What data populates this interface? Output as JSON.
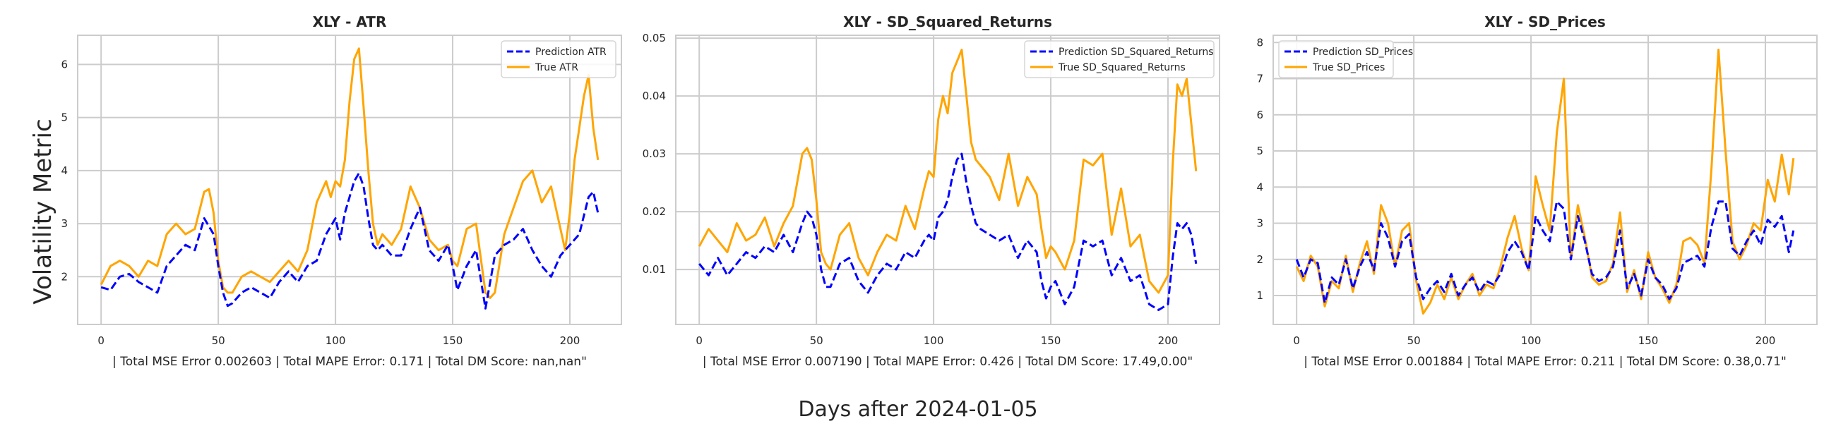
{
  "figure": {
    "ylabel": "Volatility Metric",
    "xlabel": "Days after 2024-01-05"
  },
  "colors": {
    "prediction": "#0000ff",
    "true": "#ffa500",
    "grid": "#cccccc",
    "frame": "#cccccc"
  },
  "chart_data": [
    {
      "type": "line",
      "title": "XLY - ATR",
      "footer": "| Total MSE Error 0.002603 | Total MAPE Error: 0.171 | Total DM Score: nan,nan\"",
      "xlim": [
        -10,
        222
      ],
      "ylim": [
        1.1,
        6.55
      ],
      "xticks": [
        0,
        50,
        100,
        150,
        200
      ],
      "yticks": [
        2,
        3,
        4,
        5,
        6
      ],
      "legend_position": "upper-right",
      "series": [
        {
          "name": "Prediction ATR",
          "style": "dashed",
          "color": "#0000ff",
          "x": [
            0,
            4,
            8,
            12,
            16,
            20,
            24,
            28,
            32,
            36,
            40,
            44,
            48,
            50,
            52,
            54,
            56,
            60,
            64,
            68,
            72,
            76,
            80,
            84,
            88,
            92,
            96,
            100,
            102,
            104,
            106,
            108,
            110,
            112,
            114,
            116,
            118,
            120,
            124,
            128,
            132,
            136,
            140,
            144,
            148,
            150,
            152,
            156,
            160,
            164,
            168,
            172,
            176,
            180,
            184,
            188,
            192,
            196,
            200,
            204,
            208,
            210,
            212
          ],
          "y": [
            1.8,
            1.75,
            2.0,
            2.05,
            1.9,
            1.8,
            1.7,
            2.2,
            2.4,
            2.6,
            2.5,
            3.1,
            2.8,
            2.2,
            1.7,
            1.45,
            1.5,
            1.7,
            1.8,
            1.7,
            1.6,
            1.9,
            2.1,
            1.9,
            2.2,
            2.3,
            2.8,
            3.1,
            2.7,
            3.2,
            3.5,
            3.8,
            3.95,
            3.7,
            3.1,
            2.6,
            2.5,
            2.6,
            2.4,
            2.4,
            2.9,
            3.3,
            2.5,
            2.3,
            2.6,
            2.2,
            1.75,
            2.2,
            2.5,
            1.4,
            2.4,
            2.6,
            2.7,
            2.9,
            2.5,
            2.2,
            2.0,
            2.4,
            2.6,
            2.8,
            3.5,
            3.6,
            3.2
          ]
        },
        {
          "name": "True ATR",
          "style": "solid",
          "color": "#ffa500",
          "x": [
            0,
            4,
            8,
            12,
            16,
            20,
            24,
            28,
            32,
            36,
            40,
            44,
            46,
            48,
            50,
            52,
            54,
            56,
            60,
            64,
            68,
            72,
            76,
            80,
            84,
            88,
            92,
            96,
            98,
            100,
            102,
            104,
            106,
            108,
            110,
            112,
            114,
            116,
            118,
            120,
            124,
            128,
            132,
            136,
            140,
            144,
            148,
            150,
            152,
            156,
            160,
            164,
            166,
            168,
            172,
            176,
            180,
            184,
            188,
            192,
            196,
            198,
            200,
            202,
            204,
            206,
            208,
            210,
            212
          ],
          "y": [
            1.85,
            2.2,
            2.3,
            2.2,
            2.0,
            2.3,
            2.2,
            2.8,
            3.0,
            2.8,
            2.9,
            3.6,
            3.65,
            3.2,
            2.3,
            1.8,
            1.7,
            1.7,
            2.0,
            2.1,
            2.0,
            1.9,
            2.1,
            2.3,
            2.1,
            2.5,
            3.4,
            3.8,
            3.5,
            3.8,
            3.7,
            4.2,
            5.3,
            6.1,
            6.3,
            5.2,
            4.0,
            3.0,
            2.6,
            2.8,
            2.6,
            2.9,
            3.7,
            3.3,
            2.7,
            2.5,
            2.6,
            2.3,
            2.2,
            2.9,
            3.0,
            1.7,
            1.6,
            1.7,
            2.8,
            3.3,
            3.8,
            4.0,
            3.4,
            3.7,
            2.9,
            2.5,
            3.2,
            4.2,
            4.8,
            5.4,
            5.8,
            4.8,
            4.2
          ]
        }
      ]
    },
    {
      "type": "line",
      "title": "XLY - SD_Squared_Returns",
      "footer": "| Total MSE Error 0.007190 | Total MAPE Error: 0.426 | Total DM Score: 17.49,0.00\"",
      "xlim": [
        -10,
        222
      ],
      "ylim": [
        0.0005,
        0.0505
      ],
      "xticks": [
        0,
        50,
        100,
        150,
        200
      ],
      "yticks": [
        0.01,
        0.02,
        0.03,
        0.04,
        0.05
      ],
      "legend_position": "upper-right",
      "series": [
        {
          "name": "Prediction SD_Squared_Returns",
          "style": "dashed",
          "color": "#0000ff",
          "x": [
            0,
            4,
            8,
            12,
            16,
            20,
            24,
            28,
            32,
            36,
            40,
            44,
            46,
            48,
            50,
            52,
            54,
            56,
            60,
            64,
            68,
            72,
            76,
            80,
            84,
            88,
            92,
            96,
            98,
            100,
            102,
            104,
            106,
            108,
            110,
            112,
            114,
            116,
            118,
            120,
            124,
            128,
            132,
            136,
            140,
            144,
            146,
            148,
            150,
            152,
            156,
            160,
            164,
            168,
            172,
            176,
            180,
            184,
            188,
            192,
            196,
            200,
            202,
            204,
            206,
            208,
            210,
            212
          ],
          "y": [
            0.011,
            0.009,
            0.012,
            0.009,
            0.011,
            0.013,
            0.012,
            0.014,
            0.013,
            0.016,
            0.013,
            0.018,
            0.02,
            0.019,
            0.016,
            0.01,
            0.007,
            0.007,
            0.011,
            0.012,
            0.008,
            0.006,
            0.009,
            0.011,
            0.01,
            0.013,
            0.012,
            0.015,
            0.016,
            0.015,
            0.019,
            0.02,
            0.022,
            0.026,
            0.029,
            0.03,
            0.025,
            0.021,
            0.018,
            0.017,
            0.016,
            0.015,
            0.016,
            0.012,
            0.015,
            0.013,
            0.008,
            0.005,
            0.007,
            0.008,
            0.004,
            0.007,
            0.015,
            0.014,
            0.015,
            0.009,
            0.012,
            0.008,
            0.009,
            0.004,
            0.003,
            0.004,
            0.012,
            0.018,
            0.017,
            0.018,
            0.016,
            0.011
          ]
        },
        {
          "name": "True SD_Squared_Returns",
          "style": "solid",
          "color": "#ffa500",
          "x": [
            0,
            4,
            8,
            12,
            16,
            20,
            24,
            28,
            32,
            36,
            40,
            44,
            46,
            48,
            50,
            52,
            54,
            56,
            60,
            64,
            68,
            72,
            76,
            80,
            84,
            88,
            92,
            96,
            98,
            100,
            102,
            104,
            106,
            108,
            110,
            112,
            114,
            116,
            118,
            120,
            124,
            128,
            132,
            136,
            140,
            144,
            146,
            148,
            150,
            152,
            156,
            160,
            164,
            168,
            172,
            176,
            180,
            184,
            188,
            192,
            196,
            200,
            202,
            204,
            206,
            208,
            210,
            212
          ],
          "y": [
            0.014,
            0.017,
            0.015,
            0.013,
            0.018,
            0.015,
            0.016,
            0.019,
            0.014,
            0.018,
            0.021,
            0.03,
            0.031,
            0.029,
            0.022,
            0.013,
            0.011,
            0.01,
            0.016,
            0.018,
            0.012,
            0.009,
            0.013,
            0.016,
            0.015,
            0.021,
            0.017,
            0.024,
            0.027,
            0.026,
            0.036,
            0.04,
            0.037,
            0.044,
            0.046,
            0.048,
            0.04,
            0.032,
            0.029,
            0.028,
            0.026,
            0.022,
            0.03,
            0.021,
            0.026,
            0.023,
            0.017,
            0.012,
            0.014,
            0.013,
            0.01,
            0.015,
            0.029,
            0.028,
            0.03,
            0.016,
            0.024,
            0.014,
            0.016,
            0.008,
            0.006,
            0.009,
            0.028,
            0.042,
            0.04,
            0.043,
            0.035,
            0.027
          ]
        }
      ]
    },
    {
      "type": "line",
      "title": "XLY - SD_Prices",
      "footer": "| Total MSE Error 0.001884 | Total MAPE Error: 0.211 | Total DM Score: 0.38,0.71\"",
      "xlim": [
        -10,
        222
      ],
      "ylim": [
        0.2,
        8.2
      ],
      "xticks": [
        0,
        50,
        100,
        150,
        200
      ],
      "yticks": [
        1,
        2,
        3,
        4,
        5,
        6,
        7,
        8
      ],
      "legend_position": "upper-left",
      "series": [
        {
          "name": "Prediction SD_Prices",
          "style": "dashed",
          "color": "#0000ff",
          "x": [
            0,
            3,
            6,
            9,
            12,
            15,
            18,
            21,
            24,
            27,
            30,
            33,
            36,
            39,
            42,
            45,
            48,
            51,
            54,
            57,
            60,
            63,
            66,
            69,
            72,
            75,
            78,
            81,
            84,
            87,
            90,
            93,
            96,
            99,
            102,
            105,
            108,
            111,
            114,
            117,
            120,
            123,
            126,
            129,
            132,
            135,
            138,
            141,
            144,
            147,
            150,
            153,
            156,
            159,
            162,
            165,
            168,
            171,
            174,
            177,
            180,
            183,
            186,
            189,
            192,
            195,
            198,
            201,
            204,
            207,
            210,
            212
          ],
          "y": [
            2.0,
            1.5,
            2.0,
            1.9,
            0.8,
            1.5,
            1.3,
            2.0,
            1.2,
            1.8,
            2.2,
            1.7,
            3.0,
            2.6,
            1.8,
            2.5,
            2.7,
            1.5,
            0.9,
            1.2,
            1.4,
            1.1,
            1.6,
            1.0,
            1.3,
            1.5,
            1.1,
            1.4,
            1.3,
            1.6,
            2.2,
            2.5,
            2.2,
            1.7,
            3.2,
            2.8,
            2.5,
            3.6,
            3.4,
            2.0,
            3.2,
            2.5,
            1.6,
            1.4,
            1.5,
            1.8,
            2.8,
            1.2,
            1.6,
            1.0,
            2.0,
            1.5,
            1.3,
            0.9,
            1.2,
            1.9,
            2.0,
            2.1,
            1.8,
            2.9,
            3.6,
            3.6,
            2.3,
            2.1,
            2.5,
            2.8,
            2.4,
            3.1,
            2.9,
            3.2,
            2.2,
            2.8
          ]
        },
        {
          "name": "True SD_Prices",
          "style": "solid",
          "color": "#ffa500",
          "x": [
            0,
            3,
            6,
            9,
            12,
            15,
            18,
            21,
            24,
            27,
            30,
            33,
            36,
            39,
            42,
            45,
            48,
            51,
            54,
            57,
            60,
            63,
            66,
            69,
            72,
            75,
            78,
            81,
            84,
            87,
            90,
            93,
            96,
            99,
            102,
            105,
            108,
            111,
            114,
            117,
            120,
            123,
            126,
            129,
            132,
            135,
            138,
            141,
            144,
            147,
            150,
            153,
            156,
            159,
            162,
            165,
            168,
            171,
            174,
            177,
            180,
            183,
            186,
            189,
            192,
            195,
            198,
            201,
            204,
            207,
            210,
            212
          ],
          "y": [
            1.8,
            1.4,
            2.1,
            1.8,
            0.7,
            1.4,
            1.2,
            2.1,
            1.1,
            1.9,
            2.5,
            1.6,
            3.5,
            3.0,
            1.8,
            2.8,
            3.0,
            1.4,
            0.5,
            0.8,
            1.3,
            0.9,
            1.5,
            0.9,
            1.3,
            1.6,
            1.0,
            1.3,
            1.2,
            1.8,
            2.6,
            3.2,
            2.3,
            1.7,
            4.3,
            3.5,
            2.8,
            5.5,
            7.0,
            2.0,
            3.5,
            2.6,
            1.5,
            1.3,
            1.4,
            1.9,
            3.3,
            1.1,
            1.7,
            0.9,
            2.2,
            1.5,
            1.2,
            0.8,
            1.3,
            2.5,
            2.6,
            2.4,
            1.9,
            4.5,
            7.8,
            5.0,
            2.5,
            2.0,
            2.4,
            3.0,
            2.8,
            4.2,
            3.6,
            4.9,
            3.8,
            4.8
          ]
        }
      ]
    }
  ]
}
